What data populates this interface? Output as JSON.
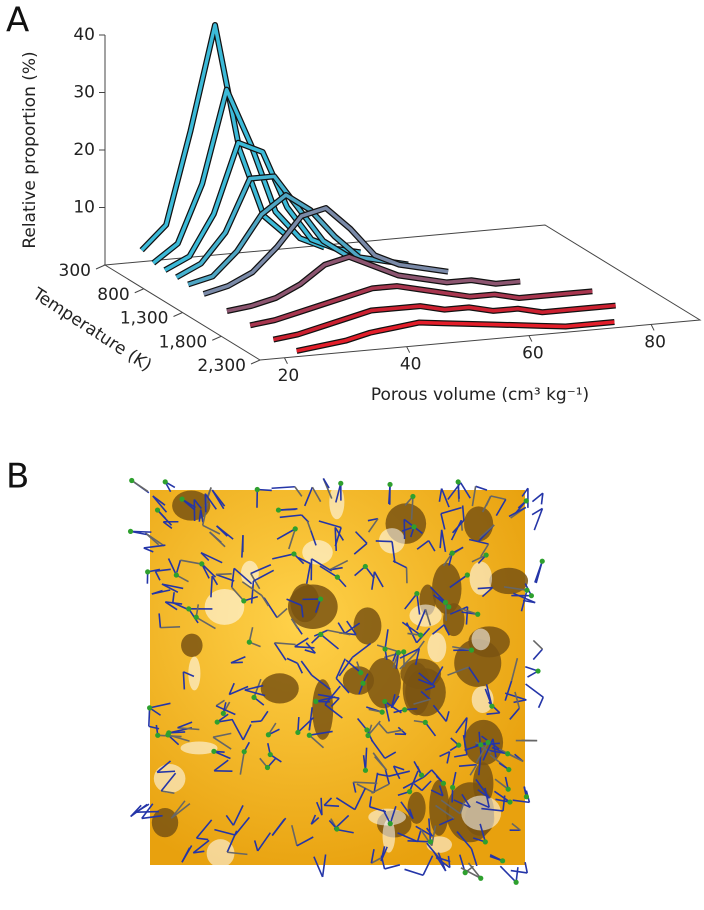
{
  "panel_a": "A",
  "panel_b": "B",
  "chart_data": {
    "type": "waterfall",
    "ylabel": "Relative proportion (%)",
    "zlabel": "Temperature (K)",
    "xlabel": "Porous volume (cm³ kg⁻¹)",
    "xlim": [
      16,
      88
    ],
    "xticks": [
      20,
      40,
      60,
      80
    ],
    "ylim": [
      0,
      40
    ],
    "yticks": [
      10,
      20,
      30,
      40
    ],
    "zlim": [
      300,
      2300
    ],
    "zticks": [
      300,
      800,
      {
        "value": 1300,
        "label": "1,300"
      },
      {
        "value": 1800,
        "label": "1,800"
      },
      {
        "value": 2300,
        "label": "2,300"
      }
    ],
    "x": [
      22,
      26,
      30,
      34,
      38,
      42,
      46,
      50,
      54,
      58,
      62,
      66,
      70,
      74,
      78
    ],
    "series": [
      {
        "z": 300,
        "color": "#3cbad8",
        "values": [
          2,
          6,
          22,
          40,
          18,
          6,
          2,
          null,
          null,
          null,
          null,
          null,
          null,
          null,
          null
        ]
      },
      {
        "z": 450,
        "color": "#3cbad8",
        "values": [
          1,
          4,
          14,
          30,
          20,
          8,
          3,
          1,
          null,
          null,
          null,
          null,
          null,
          null,
          null
        ]
      },
      {
        "z": 600,
        "color": "#3cbad8",
        "values": [
          1,
          3,
          10,
          22,
          20,
          10,
          4,
          2,
          1,
          null,
          null,
          null,
          null,
          null,
          null
        ]
      },
      {
        "z": 750,
        "color": "#45b2d0",
        "values": [
          1,
          3,
          8,
          17,
          17,
          11,
          5,
          2,
          1,
          null,
          null,
          null,
          null,
          null,
          null
        ]
      },
      {
        "z": 900,
        "color": "#4fa6c4",
        "values": [
          1,
          2,
          6,
          12,
          15,
          12,
          7,
          3,
          2,
          1,
          null,
          null,
          null,
          null,
          null
        ]
      },
      {
        "z": 1100,
        "color": "#7a8aa8",
        "values": [
          1,
          2,
          4,
          8,
          13,
          14,
          10,
          5,
          3,
          2,
          1,
          null,
          null,
          null,
          null
        ]
      },
      {
        "z": 1400,
        "color": "#8c5570",
        "values": [
          0.5,
          1,
          2,
          4,
          7,
          8,
          6,
          4,
          3,
          2,
          2,
          1,
          1,
          null,
          null
        ]
      },
      {
        "z": 1700,
        "color": "#a8364f",
        "values": [
          0.5,
          1,
          2,
          3,
          4,
          5,
          5,
          4,
          3,
          2,
          2,
          1,
          1,
          1,
          1
        ]
      },
      {
        "z": 2000,
        "color": "#cc2030",
        "values": [
          0.5,
          1,
          2,
          3,
          4,
          4,
          4,
          3,
          3,
          2,
          2,
          1,
          1,
          1,
          1
        ]
      },
      {
        "z": 2300,
        "color": "#e31e2a",
        "values": [
          1,
          1.5,
          2,
          3,
          3.5,
          4,
          3.5,
          3,
          2.5,
          2,
          1.5,
          1,
          1,
          1,
          null
        ]
      }
    ]
  }
}
